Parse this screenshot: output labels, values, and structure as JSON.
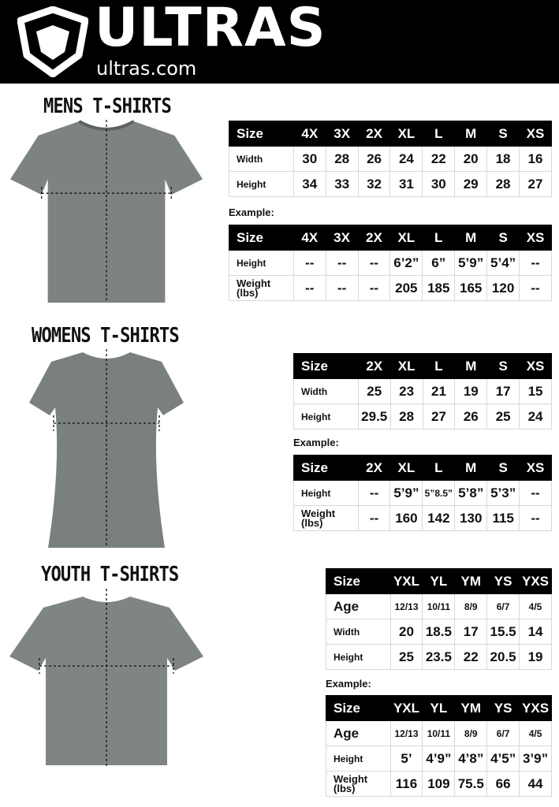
{
  "header": {
    "brand": "ULTRAS",
    "url": "ultras.com"
  },
  "mens": {
    "title": "MENS T-SHIRTS",
    "example_label": "Example:",
    "sizes": {
      "head": [
        "Size",
        "4X",
        "3X",
        "2X",
        "XL",
        "L",
        "M",
        "S",
        "XS"
      ],
      "rows": [
        [
          "Width",
          "30",
          "28",
          "26",
          "24",
          "22",
          "20",
          "18",
          "16"
        ],
        [
          "Height",
          "34",
          "33",
          "32",
          "31",
          "30",
          "29",
          "28",
          "27"
        ]
      ]
    },
    "example": {
      "head": [
        "Size",
        "4X",
        "3X",
        "2X",
        "XL",
        "L",
        "M",
        "S",
        "XS"
      ],
      "rows": [
        [
          "Height",
          "--",
          "--",
          "--",
          "6’2”",
          "6”",
          "5’9”",
          "5’4”",
          "--"
        ],
        [
          "Weight (lbs)",
          "--",
          "--",
          "--",
          "205",
          "185",
          "165",
          "120",
          "--"
        ]
      ]
    }
  },
  "womens": {
    "title": "WOMENS T-SHIRTS",
    "example_label": "Example:",
    "sizes": {
      "head": [
        "Size",
        "2X",
        "XL",
        "L",
        "M",
        "S",
        "XS"
      ],
      "rows": [
        [
          "Width",
          "25",
          "23",
          "21",
          "19",
          "17",
          "15"
        ],
        [
          "Height",
          "29.5",
          "28",
          "27",
          "26",
          "25",
          "24"
        ]
      ]
    },
    "example": {
      "head": [
        "Size",
        "2X",
        "XL",
        "L",
        "M",
        "S",
        "XS"
      ],
      "rows": [
        [
          "Height",
          "--",
          "5’9”",
          "5”8.5”",
          "5’8”",
          "5’3”",
          "--"
        ],
        [
          "Weight (lbs)",
          "--",
          "160",
          "142",
          "130",
          "115",
          "--"
        ]
      ]
    }
  },
  "youth": {
    "title": "YOUTH T-SHIRTS",
    "example_label": "Example:",
    "sizes": {
      "head": [
        "Size",
        "YXL",
        "YL",
        "YM",
        "YS",
        "YXS"
      ],
      "rows": [
        [
          "Age",
          "12/13",
          "10/11",
          "8/9",
          "6/7",
          "4/5"
        ],
        [
          "Width",
          "20",
          "18.5",
          "17",
          "15.5",
          "14"
        ],
        [
          "Height",
          "25",
          "23.5",
          "22",
          "20.5",
          "19"
        ]
      ]
    },
    "example": {
      "head": [
        "Size",
        "YXL",
        "YL",
        "YM",
        "YS",
        "YXS"
      ],
      "rows": [
        [
          "Age",
          "12/13",
          "10/11",
          "8/9",
          "6/7",
          "4/5"
        ],
        [
          "Height",
          "5’",
          "4’9”",
          "4’8”",
          "4’5”",
          "3’9”"
        ],
        [
          "Weight (lbs)",
          "116",
          "109",
          "75.5",
          "66",
          "44"
        ]
      ]
    }
  },
  "colors": {
    "header_bg": "#000000",
    "shirt": "#7d8283",
    "table_header": "#000000"
  }
}
